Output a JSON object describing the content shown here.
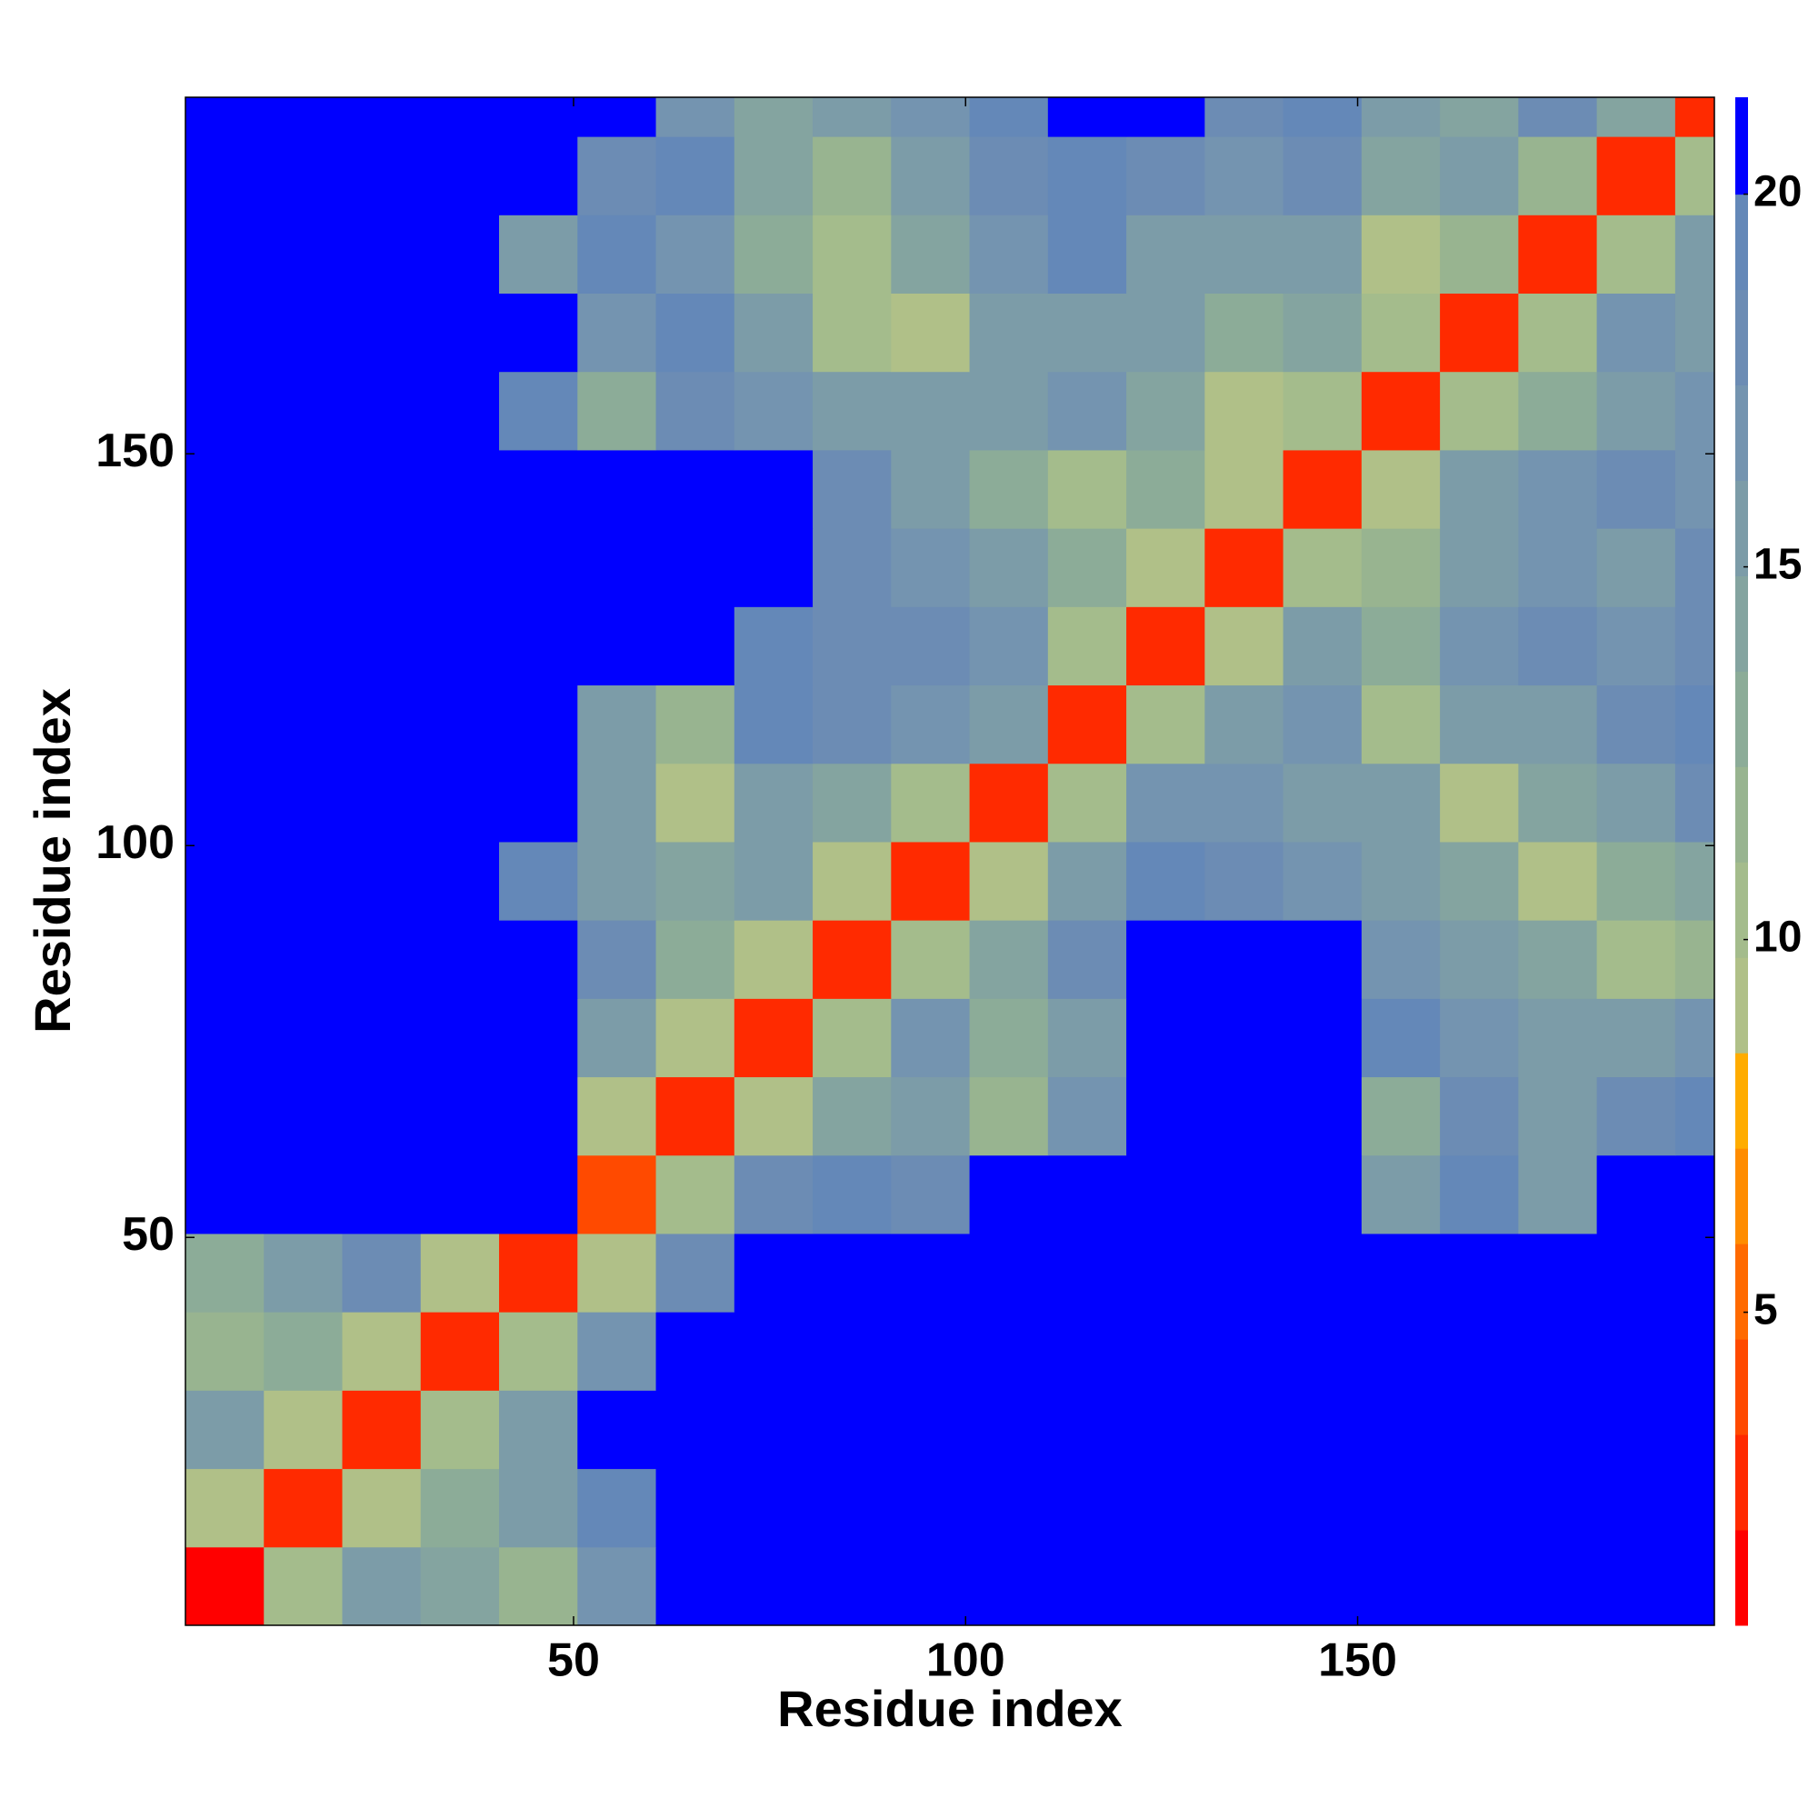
{
  "chart_data": {
    "type": "heatmap",
    "xlabel": "Residue index",
    "ylabel": "Residue index",
    "xlim": [
      0.5,
      195.5
    ],
    "ylim": [
      0.5,
      195.5
    ],
    "xticks": [
      50,
      100,
      150
    ],
    "yticks": [
      50,
      100,
      150
    ],
    "x_edges": [
      0.5,
      10.5,
      20.5,
      30.5,
      40.5,
      50.5,
      60.5,
      70.5,
      80.5,
      90.5,
      100.5,
      110.5,
      120.5,
      130.5,
      140.5,
      150.5,
      160.5,
      170.5,
      180.5,
      190.5,
      195.5
    ],
    "y_edges": [
      0.5,
      10.5,
      20.5,
      30.5,
      40.5,
      50.5,
      60.5,
      70.5,
      80.5,
      90.5,
      100.5,
      110.5,
      120.5,
      130.5,
      140.5,
      150.5,
      160.5,
      170.5,
      180.5,
      190.5,
      195.5
    ],
    "z": [
      [
        2,
        10,
        15,
        14,
        12,
        17,
        21,
        21,
        21,
        21,
        21,
        21,
        21,
        21,
        21,
        21,
        21,
        21,
        21,
        21
      ],
      [
        9,
        3,
        9,
        13,
        15,
        19,
        21,
        21,
        21,
        21,
        21,
        21,
        21,
        21,
        21,
        21,
        21,
        21,
        21,
        21
      ],
      [
        15,
        9,
        3,
        10,
        16,
        21,
        21,
        21,
        21,
        21,
        21,
        21,
        21,
        21,
        21,
        21,
        21,
        21,
        21,
        21
      ],
      [
        12,
        13,
        9,
        3,
        10,
        17,
        21,
        21,
        21,
        21,
        21,
        21,
        21,
        21,
        21,
        20,
        21,
        21,
        21,
        21
      ],
      [
        13,
        16,
        18,
        9,
        3,
        9,
        18,
        21,
        21,
        21,
        21,
        21,
        21,
        21,
        21,
        21,
        21,
        21,
        21,
        21
      ],
      [
        20,
        21,
        21,
        21,
        21,
        4,
        10,
        18,
        19,
        18,
        21,
        21,
        21,
        21,
        21,
        16,
        19,
        16,
        20,
        21
      ],
      [
        21,
        21,
        21,
        21,
        21,
        9,
        3,
        9,
        14,
        16,
        12,
        17,
        21,
        21,
        21,
        13,
        18,
        15,
        18,
        19
      ],
      [
        21,
        21,
        21,
        21,
        21,
        16,
        9,
        3,
        10,
        17,
        13,
        16,
        21,
        21,
        21,
        19,
        17,
        15,
        16,
        17
      ],
      [
        21,
        21,
        21,
        21,
        21,
        18,
        13,
        9,
        3,
        10,
        14,
        18,
        21,
        21,
        20,
        17,
        15,
        14,
        11,
        12
      ],
      [
        21,
        21,
        21,
        21,
        19,
        15,
        14,
        16,
        9,
        3,
        9,
        15,
        19,
        18,
        17,
        16,
        14,
        9,
        13,
        14
      ],
      [
        21,
        21,
        21,
        21,
        21,
        16,
        9,
        15,
        14,
        11,
        3,
        10,
        17,
        17,
        16,
        15,
        9,
        14,
        16,
        18
      ],
      [
        21,
        21,
        21,
        21,
        21,
        16,
        12,
        19,
        18,
        17,
        16,
        3,
        10,
        16,
        17,
        11,
        15,
        16,
        18,
        19
      ],
      [
        21,
        21,
        21,
        21,
        21,
        21,
        20,
        19,
        18,
        18,
        17,
        11,
        3,
        9,
        15,
        13,
        17,
        18,
        17,
        18
      ],
      [
        21,
        21,
        21,
        21,
        21,
        21,
        21,
        20,
        18,
        17,
        15,
        13,
        9,
        3,
        10,
        12,
        16,
        17,
        16,
        18
      ],
      [
        21,
        21,
        21,
        21,
        21,
        20,
        21,
        21,
        18,
        16,
        13,
        10,
        13,
        9,
        3,
        9,
        15,
        17,
        18,
        17
      ],
      [
        21,
        21,
        21,
        21,
        19,
        13,
        18,
        17,
        15,
        16,
        16,
        17,
        14,
        9,
        10,
        3,
        10,
        13,
        16,
        17
      ],
      [
        21,
        21,
        21,
        21,
        20,
        17,
        19,
        16,
        11,
        9,
        15,
        16,
        16,
        13,
        14,
        10,
        3,
        10,
        17,
        16
      ],
      [
        21,
        21,
        21,
        20,
        16,
        19,
        17,
        13,
        10,
        14,
        17,
        19,
        16,
        15,
        16,
        9,
        12,
        3,
        10,
        16
      ],
      [
        21,
        21,
        21,
        21,
        21,
        18,
        19,
        14,
        12,
        15,
        18,
        19,
        18,
        17,
        18,
        14,
        15,
        12,
        3,
        10
      ],
      [
        21,
        21,
        21,
        21,
        21,
        20,
        17,
        14,
        16,
        17,
        19,
        20,
        20,
        18,
        19,
        15,
        14,
        18,
        14,
        3
      ]
    ],
    "colorbar": {
      "bounds": [
        0.8,
        2.08,
        3.36,
        4.64,
        5.92,
        7.2,
        8.48,
        9.76,
        11.04,
        12.32,
        13.6,
        14.88,
        16.16,
        17.44,
        18.72,
        20.0,
        21.3
      ],
      "colors": [
        "#ff0000",
        "#ff2a00",
        "#ff4a00",
        "#ff6a00",
        "#ff8c00",
        "#ffac00",
        "#b0c088",
        "#a4bc8c",
        "#98b490",
        "#8cac98",
        "#84a4a0",
        "#7c9ca8",
        "#7494b0",
        "#6c8cb4",
        "#6488b8",
        "#0000ff"
      ],
      "ticks": [
        5,
        10,
        15,
        20
      ]
    }
  }
}
